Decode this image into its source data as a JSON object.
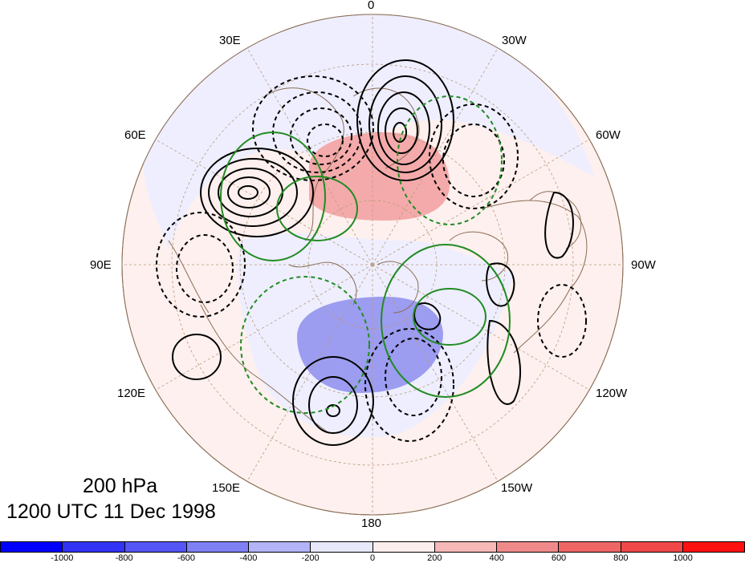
{
  "map": {
    "projection": "north polar stereographic",
    "longitude_labels": [
      "0",
      "30W",
      "60W",
      "90W",
      "120W",
      "150W",
      "180",
      "150E",
      "120E",
      "90E",
      "60E",
      "30E"
    ],
    "contour_styles": {
      "positive": "solid black",
      "negative": "dashed black",
      "green_positive": "solid green",
      "green_negative": "dashed green"
    },
    "shading_colors": {
      "neg_strong": "#8c8cf0",
      "neg_weak": "#eeeeff",
      "pos_weak": "#fdeeec",
      "pos_mid": "#f7c2c2",
      "pos_strong": "#f08080"
    }
  },
  "title": {
    "level": "200 hPa",
    "time": "1200 UTC 11 Dec 1998"
  },
  "colorbar": {
    "colors": [
      "#0000ff",
      "#3333f5",
      "#5555f5",
      "#8080f5",
      "#b3b3f7",
      "#e8e8fb",
      "#fdeeee",
      "#f7b8b8",
      "#f08a8a",
      "#ee6666",
      "#f04848",
      "#ff1010"
    ],
    "labels": [
      "-1000",
      "-800",
      "-600",
      "-400",
      "-200",
      "0",
      "200",
      "400",
      "600",
      "800",
      "1000"
    ]
  }
}
